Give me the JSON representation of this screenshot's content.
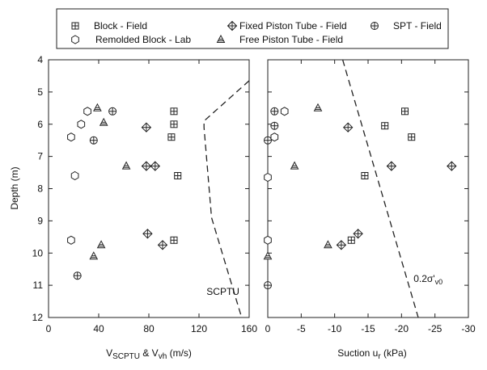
{
  "chart_data": {
    "type": "scatter",
    "legend": {
      "placement": "top",
      "entries": [
        {
          "key": "block",
          "label": "Block - Field",
          "marker": "boxplus"
        },
        {
          "key": "fixed",
          "label": "Fixed Piston Tube - Field",
          "marker": "diamondplus"
        },
        {
          "key": "spt",
          "label": "SPT - Field",
          "marker": "circleplus"
        },
        {
          "key": "remolded",
          "label": "Remolded Block - Lab",
          "marker": "hexagon"
        },
        {
          "key": "free",
          "label": "Free Piston Tube - Field",
          "marker": "triangle"
        }
      ]
    },
    "ylabel": "Depth (m)",
    "ylim": [
      12,
      4
    ],
    "yticks": [
      "4",
      "5",
      "6",
      "7",
      "8",
      "9",
      "10",
      "11",
      "12"
    ],
    "panels": [
      {
        "id": "left",
        "xlabel_main": "V",
        "xlabel_sub": "SCPTU",
        "xlabel_rest": " & V",
        "xlabel_sub2": "vh",
        "xlabel_end": " (m/s)",
        "xlim": [
          0,
          160
        ],
        "xticks": [
          {
            "v": 0,
            "label": "0"
          },
          {
            "v": 40,
            "label": "40"
          },
          {
            "v": 80,
            "label": "80"
          },
          {
            "v": 120,
            "label": "120"
          },
          {
            "v": 160,
            "label": "160"
          }
        ],
        "lines": [
          {
            "name": "SCPTU",
            "style": "dashed",
            "x": [
              160,
              124,
              124,
              130,
              154
            ],
            "y": [
              4.65,
              5.9,
              6.1,
              8.9,
              12.0
            ]
          }
        ],
        "annotations": [
          {
            "text": "SCPTU",
            "x": 126,
            "y": 11.3
          }
        ],
        "series": [
          {
            "key": "block",
            "x": [
              100,
              100,
              98,
              103,
              100
            ],
            "y": [
              5.6,
              6.0,
              6.4,
              7.6,
              9.6
            ]
          },
          {
            "key": "fixed",
            "x": [
              78,
              78,
              85,
              79,
              91
            ],
            "y": [
              6.1,
              7.3,
              7.3,
              9.4,
              9.75
            ]
          },
          {
            "key": "spt",
            "x": [
              51,
              36,
              23
            ],
            "y": [
              5.6,
              6.5,
              10.7
            ]
          },
          {
            "key": "remolded",
            "x": [
              31,
              26,
              18,
              21,
              18
            ],
            "y": [
              5.6,
              6.0,
              6.4,
              7.6,
              9.6
            ]
          },
          {
            "key": "free",
            "x": [
              39,
              44,
              62,
              42,
              36
            ],
            "y": [
              5.5,
              5.95,
              7.3,
              9.75,
              10.1
            ]
          }
        ]
      },
      {
        "id": "right",
        "xlabel_main": "Suction u",
        "xlabel_sub": "r",
        "xlabel_end": " (kPa)",
        "xlim": [
          0,
          -30
        ],
        "xticks": [
          {
            "v": 0,
            "label": "0"
          },
          {
            "v": -5,
            "label": "-5"
          },
          {
            "v": -10,
            "label": "-10"
          },
          {
            "v": -15,
            "label": "-15"
          },
          {
            "v": -20,
            "label": "-20"
          },
          {
            "v": -25,
            "label": "-25"
          },
          {
            "v": -30,
            "label": "-30"
          }
        ],
        "lines": [
          {
            "name": "0.2σ'v0",
            "style": "dashed",
            "x": [
              -11.2,
              -22.5
            ],
            "y": [
              4.0,
              12.0
            ]
          }
        ],
        "annotations": [
          {
            "text": "0.2σ'",
            "sub": "v0",
            "x": -21.8,
            "y": 10.9
          }
        ],
        "series": [
          {
            "key": "block",
            "x": [
              -20.5,
              -17.5,
              -21.5,
              -14.5,
              -12.5
            ],
            "y": [
              5.6,
              6.05,
              6.4,
              7.6,
              9.6
            ]
          },
          {
            "key": "fixed",
            "x": [
              -12,
              -18.5,
              -27.5,
              -13.5,
              -11
            ],
            "y": [
              6.1,
              7.3,
              7.3,
              9.4,
              9.75
            ]
          },
          {
            "key": "spt",
            "x": [
              -1,
              -1,
              0,
              0
            ],
            "y": [
              5.6,
              6.05,
              6.5,
              11.0
            ]
          },
          {
            "key": "remolded",
            "x": [
              -2.5,
              -1,
              0,
              0
            ],
            "y": [
              5.6,
              6.4,
              7.65,
              9.6
            ]
          },
          {
            "key": "free",
            "x": [
              -7.5,
              -4,
              -9,
              0
            ],
            "y": [
              5.5,
              7.3,
              9.75,
              10.1
            ]
          }
        ]
      }
    ]
  }
}
